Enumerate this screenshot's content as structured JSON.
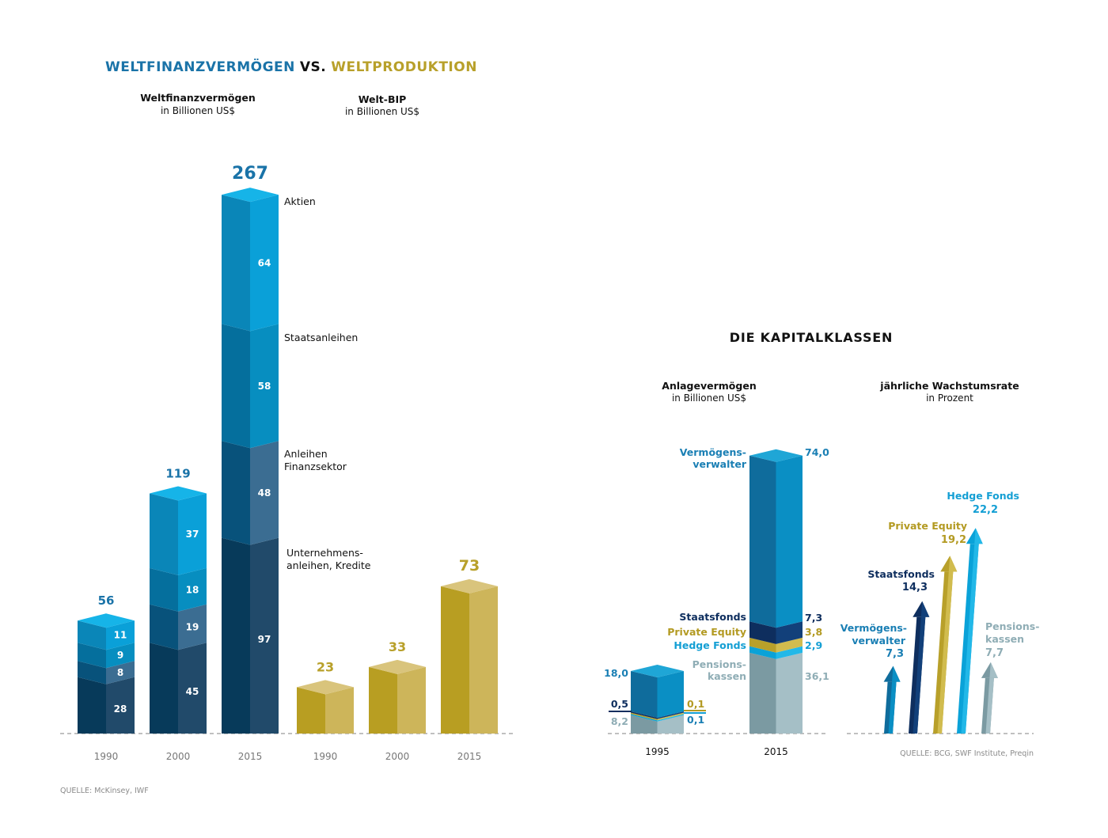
{
  "header": {
    "title_left": "WELTFINANZVERMÖGEN",
    "title_vs": "VS.",
    "title_right": "WELTPRODUKTION",
    "title_right_section": "DIE KAPITALKLASSEN"
  },
  "colors": {
    "title_blue": "#1a73a8",
    "gold": "#b8a02a",
    "aktien": [
      "#0a86b8",
      "#0aa0d8",
      "#16b4e8"
    ],
    "staatsanleihen": [
      "#056f9d",
      "#078ec0",
      "#0a9ed2"
    ],
    "anleihen_finanz": [
      "#08527b",
      "#3b6d92",
      "#4a82a8"
    ],
    "unternehmen": [
      "#073a5a",
      "#214a6a",
      "#2f5e80"
    ],
    "gdp": [
      "#b89e22",
      "#cdb55a",
      "#d9c47c"
    ],
    "verm": [
      "#0f6c9c",
      "#0a8fc4",
      "#1fa6d6"
    ],
    "staatsfonds": [
      "#0e2e5e",
      "#12407a",
      "#1a5290"
    ],
    "private_equity": [
      "#b8a02a",
      "#d1bc4e",
      "#d8c660"
    ],
    "hedge_fonds": [
      "#0aa2d8",
      "#22b8e8",
      "#3ac4ee"
    ],
    "pension": [
      "#7b9aa2",
      "#a5bfc6",
      "#c0d2d7"
    ],
    "label_navy": "#0e2e5e",
    "label_blue": "#1a7fb4",
    "label_gold": "#b39a22",
    "label_cyan": "#149fd4",
    "label_grey": "#8fadb5",
    "ink": "#111111",
    "axis": "#9a9a9a"
  },
  "chart_data": [
    {
      "type": "bar",
      "stacked": true,
      "title": "Weltfinanzvermögen",
      "subtitle": "in Billionen US$",
      "categories": [
        "1990",
        "2000",
        "2015"
      ],
      "totals": [
        56,
        119,
        267
      ],
      "series": [
        {
          "name": "Unternehmens-anleihen, Kredite",
          "values": [
            28,
            45,
            97
          ]
        },
        {
          "name": "Anleihen Finanzsektor",
          "values": [
            8,
            19,
            48
          ]
        },
        {
          "name": "Staatsanleihen",
          "values": [
            9,
            18,
            58
          ]
        },
        {
          "name": "Aktien",
          "values": [
            11,
            37,
            64
          ]
        }
      ],
      "legend": [
        "Aktien",
        "Staatsanleihen",
        "Anleihen Finanzsektor",
        "Unternehmens-anleihen, Kredite"
      ]
    },
    {
      "type": "bar",
      "title": "Welt-BIP",
      "subtitle": "in Billionen US$",
      "categories": [
        "1990",
        "2000",
        "2015"
      ],
      "values": [
        23,
        33,
        73
      ]
    },
    {
      "type": "bar",
      "stacked": true,
      "title": "Anlagevermögen",
      "subtitle": "in Billionen US$",
      "categories": [
        "1995",
        "2015"
      ],
      "series": [
        {
          "name": "Pensions-kassen",
          "values": [
            "8,2",
            "36,1"
          ]
        },
        {
          "name": "Hedge Fonds",
          "values": [
            "0,1",
            "2,9"
          ]
        },
        {
          "name": "Private Equity",
          "values": [
            "0,1",
            "3,8"
          ]
        },
        {
          "name": "Staatsfonds",
          "values": [
            "0,5",
            "7,3"
          ]
        },
        {
          "name": "Vermögens-verwalter",
          "values": [
            "18,0",
            "74,0"
          ]
        }
      ]
    },
    {
      "type": "bar",
      "title": "jährliche Wachstumsrate",
      "subtitle": "in Prozent",
      "series": [
        {
          "name": "Vermögens-verwalter",
          "value": "7,3"
        },
        {
          "name": "Staatsfonds",
          "value": "14,3"
        },
        {
          "name": "Private Equity",
          "value": "19,2"
        },
        {
          "name": "Hedge Fonds",
          "value": "22,2"
        },
        {
          "name": "Pensions-kassen",
          "value": "7,7"
        }
      ]
    }
  ],
  "sources": {
    "left": "QUELLE: McKinsey, IWF",
    "right": "QUELLE: BCG, SWF Institute, Preqin"
  }
}
